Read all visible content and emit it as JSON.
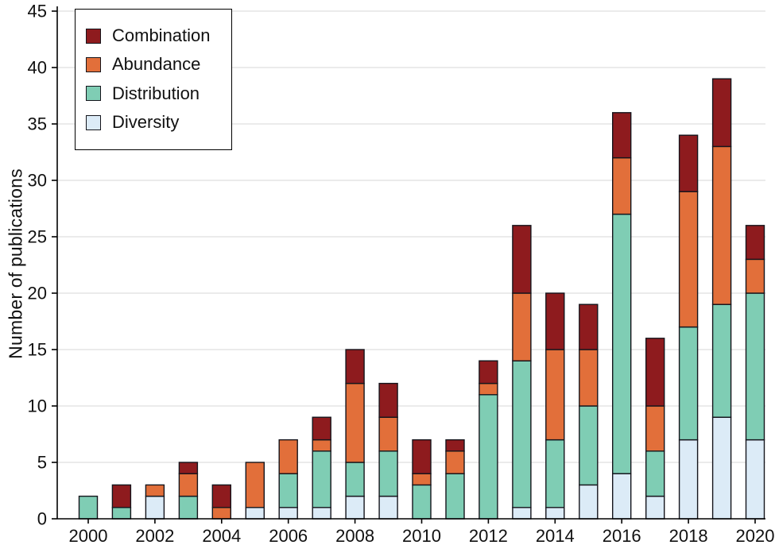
{
  "chart_data": {
    "type": "bar",
    "stacked": true,
    "title": "",
    "xlabel": "",
    "ylabel": "Number of publications",
    "ylim": [
      0,
      45
    ],
    "ytick_step": 5,
    "grid": "horizontal",
    "gridline_color": "#d7d7d7",
    "bar_outline_color": "#15151c",
    "axis_color": "#000000",
    "legend_position": "top-left",
    "categories": [
      2000,
      2001,
      2002,
      2003,
      2004,
      2005,
      2006,
      2007,
      2008,
      2009,
      2010,
      2011,
      2012,
      2013,
      2014,
      2015,
      2016,
      2017,
      2018,
      2019,
      2020
    ],
    "xtick_labels": [
      "2000",
      "2002",
      "2004",
      "2006",
      "2008",
      "2010",
      "2012",
      "2014",
      "2016",
      "2018",
      "2020"
    ],
    "series": [
      {
        "name": "Diversity",
        "color": "#DCEBF7",
        "values": [
          0,
          0,
          2,
          0,
          0,
          1,
          1,
          1,
          2,
          2,
          0,
          0,
          0,
          1,
          1,
          3,
          4,
          2,
          7,
          9,
          7
        ]
      },
      {
        "name": "Distribution",
        "color": "#7FCDB4",
        "values": [
          2,
          1,
          0,
          2,
          0,
          0,
          3,
          5,
          3,
          4,
          3,
          4,
          11,
          13,
          6,
          7,
          23,
          4,
          10,
          10,
          13
        ]
      },
      {
        "name": "Abundance",
        "color": "#E26F3A",
        "values": [
          0,
          0,
          1,
          2,
          1,
          4,
          3,
          1,
          7,
          3,
          1,
          2,
          1,
          6,
          8,
          5,
          5,
          4,
          12,
          14,
          3
        ]
      },
      {
        "name": "Combination",
        "color": "#8E1B1E",
        "values": [
          0,
          2,
          0,
          1,
          2,
          0,
          0,
          2,
          3,
          3,
          3,
          1,
          2,
          6,
          5,
          4,
          4,
          6,
          5,
          6,
          3
        ]
      }
    ]
  }
}
